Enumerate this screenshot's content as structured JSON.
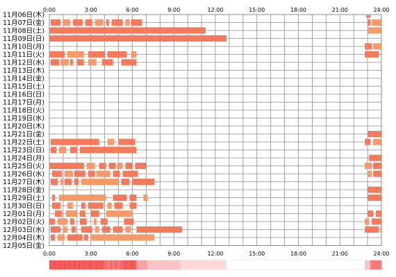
{
  "chart_data": {
    "type": "heatmap",
    "hour_labels": [
      "0:00",
      "3:00",
      "6:00",
      "9:00",
      "12:00",
      "15:00",
      "18:00",
      "21:00",
      "24:00"
    ],
    "days": [
      {
        "label": "11月06日(木)",
        "segments": [
          [
            22.9,
            23.2
          ]
        ]
      },
      {
        "label": "11月07日(金)",
        "segments": [
          [
            0.1,
            0.8
          ],
          [
            1.0,
            1.5
          ],
          [
            1.7,
            2.4
          ],
          [
            2.6,
            3.1
          ],
          [
            3.3,
            3.9
          ],
          [
            4.1,
            4.3
          ],
          [
            4.5,
            5.3
          ],
          [
            5.5,
            5.8
          ],
          [
            5.9,
            6.7
          ],
          [
            23.0,
            23.2
          ],
          [
            23.3,
            24.0
          ]
        ]
      },
      {
        "label": "11月08日(土)",
        "segments": [
          [
            0.0,
            11.3
          ],
          [
            23.0,
            24.0
          ]
        ]
      },
      {
        "label": "11月09日(日)",
        "segments": [
          [
            0.0,
            12.8
          ]
        ]
      },
      {
        "label": "11月10日(月)",
        "segments": [
          [
            22.8,
            23.3
          ],
          [
            23.4,
            24.0
          ]
        ]
      },
      {
        "label": "11月11日(火)",
        "segments": [
          [
            0.0,
            1.1
          ],
          [
            1.3,
            2.5
          ],
          [
            2.8,
            4.0
          ],
          [
            4.2,
            5.6
          ],
          [
            5.9,
            6.3
          ],
          [
            22.8,
            23.8
          ]
        ]
      },
      {
        "label": "11月12日(水)",
        "segments": [
          [
            0.1,
            0.7
          ],
          [
            0.8,
            1.4
          ],
          [
            1.5,
            1.7
          ],
          [
            2.0,
            2.5
          ],
          [
            2.8,
            3.4
          ],
          [
            3.8,
            4.6
          ],
          [
            5.2,
            6.3
          ]
        ]
      },
      {
        "label": "11月13日(木)",
        "segments": []
      },
      {
        "label": "11月14日(金)",
        "segments": []
      },
      {
        "label": "11月15日(土)",
        "segments": []
      },
      {
        "label": "11月16日(日)",
        "segments": []
      },
      {
        "label": "11月17日(月)",
        "segments": []
      },
      {
        "label": "11月18日(火)",
        "segments": []
      },
      {
        "label": "11月19日(水)",
        "segments": []
      },
      {
        "label": "11月20日(木)",
        "segments": []
      },
      {
        "label": "11月21日(金)",
        "segments": [
          [
            23.0,
            24.0
          ]
        ]
      },
      {
        "label": "11月22日(土)",
        "segments": [
          [
            0.1,
            3.6
          ],
          [
            4.2,
            4.7
          ],
          [
            5.0,
            6.2
          ],
          [
            22.8,
            23.2
          ],
          [
            23.4,
            24.0
          ]
        ]
      },
      {
        "label": "11月23日(日)",
        "segments": [
          [
            0.1,
            0.5
          ],
          [
            0.7,
            1.2
          ],
          [
            1.5,
            2.0
          ],
          [
            2.2,
            6.3
          ]
        ]
      },
      {
        "label": "11月24日(月)",
        "segments": [
          [
            23.1,
            24.0
          ]
        ]
      },
      {
        "label": "11月25日(火)",
        "segments": [
          [
            0.0,
            2.5
          ],
          [
            2.7,
            3.3
          ],
          [
            3.6,
            4.1
          ],
          [
            4.3,
            4.8
          ],
          [
            4.9,
            5.3
          ],
          [
            5.5,
            6.0
          ],
          [
            6.2,
            7.0
          ],
          [
            22.8,
            23.3
          ],
          [
            23.4,
            24.0
          ]
        ]
      },
      {
        "label": "11月26日(水)",
        "segments": [
          [
            0.2,
            0.9
          ],
          [
            1.1,
            1.7
          ],
          [
            1.8,
            2.6
          ],
          [
            2.8,
            3.3
          ],
          [
            3.4,
            4.4
          ],
          [
            4.6,
            5.1
          ],
          [
            5.3,
            6.4
          ],
          [
            23.0,
            23.3
          ],
          [
            23.4,
            24.0
          ]
        ]
      },
      {
        "label": "11月27日(木)",
        "segments": [
          [
            0.1,
            0.6
          ],
          [
            0.8,
            1.0
          ],
          [
            1.1,
            1.6
          ],
          [
            1.8,
            2.1
          ],
          [
            2.3,
            5.0
          ],
          [
            5.2,
            5.8
          ],
          [
            6.0,
            7.6
          ]
        ]
      },
      {
        "label": "11月28日(金)",
        "segments": [
          [
            23.0,
            24.0
          ]
        ]
      },
      {
        "label": "11月29日(土)",
        "segments": [
          [
            0.2,
            0.4
          ],
          [
            0.7,
            4.1
          ],
          [
            4.6,
            5.6
          ],
          [
            5.8,
            6.3
          ],
          [
            6.8,
            7.1
          ],
          [
            23.0,
            24.0
          ]
        ]
      },
      {
        "label": "11月30日(日)",
        "segments": [
          [
            0.2,
            0.8
          ],
          [
            1.3,
            1.7
          ],
          [
            2.3,
            2.6
          ],
          [
            2.8,
            3.9
          ],
          [
            4.2,
            4.5
          ],
          [
            4.7,
            5.3
          ],
          [
            5.8,
            6.3
          ]
        ]
      },
      {
        "label": "12月01日(月)",
        "segments": [
          [
            0.4,
            0.9
          ],
          [
            1.2,
            2.0
          ],
          [
            2.2,
            2.6
          ],
          [
            3.0,
            3.6
          ],
          [
            4.1,
            6.0
          ],
          [
            23.0,
            23.4
          ],
          [
            23.6,
            24.0
          ]
        ]
      },
      {
        "label": "12月02日(火)",
        "segments": [
          [
            0.0,
            0.4
          ],
          [
            0.6,
            1.3
          ],
          [
            1.5,
            1.8
          ],
          [
            2.2,
            2.7
          ],
          [
            3.2,
            3.4
          ],
          [
            3.7,
            4.2
          ],
          [
            5.4,
            6.1
          ],
          [
            22.8,
            23.1
          ],
          [
            23.3,
            24.0
          ]
        ]
      },
      {
        "label": "12月03日(水)",
        "segments": [
          [
            0.1,
            0.8
          ],
          [
            1.0,
            1.3
          ],
          [
            1.6,
            1.9
          ],
          [
            2.3,
            3.1
          ],
          [
            3.3,
            3.6
          ],
          [
            3.8,
            4.4
          ],
          [
            4.6,
            5.3
          ],
          [
            5.5,
            5.9
          ],
          [
            6.3,
            9.6
          ],
          [
            22.8,
            23.8
          ],
          [
            23.9,
            24.0
          ]
        ]
      },
      {
        "label": "12月04日(木)",
        "segments": [
          [
            0.1,
            0.4
          ],
          [
            0.6,
            1.1
          ],
          [
            1.3,
            2.4
          ],
          [
            2.5,
            2.8
          ],
          [
            3.0,
            7.6
          ]
        ]
      },
      {
        "label": "12月05日(金)",
        "segments": []
      }
    ],
    "summary_bands": [
      {
        "from": 0.0,
        "to": 4.0,
        "color": "#f25e5e"
      },
      {
        "from": 4.0,
        "to": 5.3,
        "color": "#f47a7a"
      },
      {
        "from": 5.3,
        "to": 6.3,
        "color": "#f25e5e"
      },
      {
        "from": 6.3,
        "to": 7.1,
        "color": "#f7a3a3"
      },
      {
        "from": 7.1,
        "to": 9.5,
        "color": "#f9c4c4"
      },
      {
        "from": 9.5,
        "to": 12.8,
        "color": "#fbd9d9"
      },
      {
        "from": 12.8,
        "to": 22.8,
        "color": "#ffffff"
      },
      {
        "from": 22.8,
        "to": 23.2,
        "color": "#f9c4c4"
      },
      {
        "from": 23.2,
        "to": 24.0,
        "color": "#f47a7a"
      }
    ],
    "colors": {
      "bar_fill": "#f47a5e",
      "bar_fill_light": "#f59a6a",
      "grid": "#8c8c8c",
      "text": "#000000"
    }
  }
}
